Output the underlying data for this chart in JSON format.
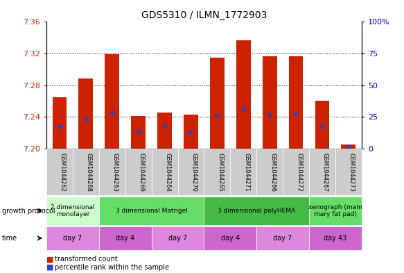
{
  "title": "GDS5310 / ILMN_1772903",
  "samples": [
    "GSM1044262",
    "GSM1044268",
    "GSM1044263",
    "GSM1044269",
    "GSM1044264",
    "GSM1044270",
    "GSM1044265",
    "GSM1044271",
    "GSM1044266",
    "GSM1044272",
    "GSM1044267",
    "GSM1044273"
  ],
  "bar_tops": [
    7.265,
    7.289,
    7.319,
    7.241,
    7.246,
    7.243,
    7.315,
    7.337,
    7.317,
    7.317,
    7.261,
    7.205
  ],
  "bar_base": 7.2,
  "blue_dot_values": [
    7.228,
    7.238,
    7.246,
    7.222,
    7.228,
    7.221,
    7.242,
    7.25,
    7.243,
    7.244,
    7.228,
    7.203
  ],
  "ylim": [
    7.2,
    7.36
  ],
  "yticks_left": [
    7.2,
    7.24,
    7.28,
    7.32,
    7.36
  ],
  "yticks_right": [
    0,
    25,
    50,
    75,
    100
  ],
  "ytick_labels_right": [
    "0",
    "25",
    "50",
    "75",
    "100%"
  ],
  "bar_color": "#cc2200",
  "dot_color": "#2244cc",
  "grid_color": "#000000",
  "bg_plot": "#ffffff",
  "bg_fig": "#ffffff",
  "growth_protocol_groups": [
    {
      "label": "2 dimensional\nmonolayer",
      "start": 0,
      "end": 2,
      "color": "#ccffcc"
    },
    {
      "label": "3 dimensional Matrigel",
      "start": 2,
      "end": 6,
      "color": "#66dd66"
    },
    {
      "label": "3 dimensional polyHEMA",
      "start": 6,
      "end": 10,
      "color": "#44bb44"
    },
    {
      "label": "xenograph (mam\nmary fat pad)",
      "start": 10,
      "end": 12,
      "color": "#66dd66"
    }
  ],
  "time_groups": [
    {
      "label": "day 7",
      "start": 0,
      "end": 2,
      "color": "#dd88dd"
    },
    {
      "label": "day 4",
      "start": 2,
      "end": 4,
      "color": "#cc66cc"
    },
    {
      "label": "day 7",
      "start": 4,
      "end": 6,
      "color": "#dd88dd"
    },
    {
      "label": "day 4",
      "start": 6,
      "end": 8,
      "color": "#cc66cc"
    },
    {
      "label": "day 7",
      "start": 8,
      "end": 10,
      "color": "#dd88dd"
    },
    {
      "label": "day 43",
      "start": 10,
      "end": 12,
      "color": "#cc66cc"
    }
  ],
  "title_color": "#000000",
  "tick_label_left_color": "#cc2200",
  "tick_label_right_color": "#0000cc"
}
